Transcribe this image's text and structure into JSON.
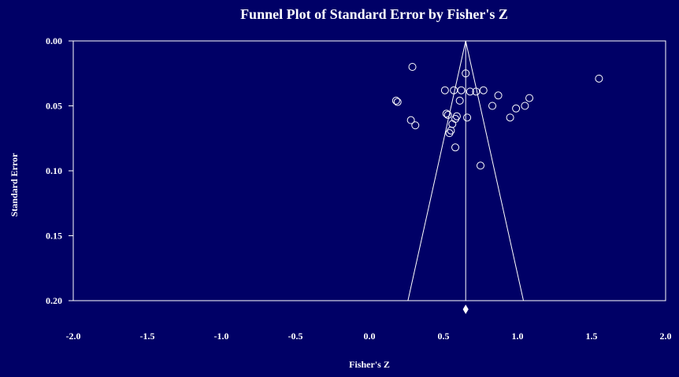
{
  "chart_data": {
    "type": "scatter",
    "title": "Funnel Plot of Standard Error by Fisher's Z",
    "xlabel": "Fisher's Z",
    "ylabel": "Standard Error",
    "xlim": [
      -2.0,
      2.0
    ],
    "ylim": [
      0.0,
      0.2
    ],
    "y_inverted": true,
    "x_ticks": [
      "-2.0",
      "-1.5",
      "-1.0",
      "-0.5",
      "0.0",
      "0.5",
      "1.0",
      "1.5",
      "2.0"
    ],
    "y_ticks": [
      "0.00",
      "0.05",
      "0.10",
      "0.15",
      "0.20"
    ],
    "summary_effect": 0.65,
    "funnel": {
      "apex_se": 0.0,
      "base_se": 0.2,
      "left_x_at_base": 0.26,
      "right_x_at_base": 1.04
    },
    "grid": false,
    "colors": {
      "background": "#000066",
      "foreground": "#ffffff"
    },
    "points": [
      {
        "x": 0.29,
        "y": 0.02
      },
      {
        "x": 1.55,
        "y": 0.029
      },
      {
        "x": 0.65,
        "y": 0.025
      },
      {
        "x": 0.51,
        "y": 0.038
      },
      {
        "x": 0.57,
        "y": 0.038
      },
      {
        "x": 0.62,
        "y": 0.038
      },
      {
        "x": 0.68,
        "y": 0.039
      },
      {
        "x": 0.72,
        "y": 0.039
      },
      {
        "x": 0.77,
        "y": 0.038
      },
      {
        "x": 0.87,
        "y": 0.042
      },
      {
        "x": 1.08,
        "y": 0.044
      },
      {
        "x": 0.18,
        "y": 0.046
      },
      {
        "x": 0.19,
        "y": 0.047
      },
      {
        "x": 0.61,
        "y": 0.046
      },
      {
        "x": 0.83,
        "y": 0.05
      },
      {
        "x": 1.05,
        "y": 0.05
      },
      {
        "x": 0.99,
        "y": 0.052
      },
      {
        "x": 0.52,
        "y": 0.056
      },
      {
        "x": 0.53,
        "y": 0.057
      },
      {
        "x": 0.59,
        "y": 0.058
      },
      {
        "x": 0.58,
        "y": 0.06
      },
      {
        "x": 0.66,
        "y": 0.059
      },
      {
        "x": 0.95,
        "y": 0.059
      },
      {
        "x": 0.28,
        "y": 0.061
      },
      {
        "x": 0.56,
        "y": 0.064
      },
      {
        "x": 0.31,
        "y": 0.065
      },
      {
        "x": 0.55,
        "y": 0.069
      },
      {
        "x": 0.54,
        "y": 0.071
      },
      {
        "x": 0.58,
        "y": 0.082
      },
      {
        "x": 0.75,
        "y": 0.096
      }
    ]
  }
}
